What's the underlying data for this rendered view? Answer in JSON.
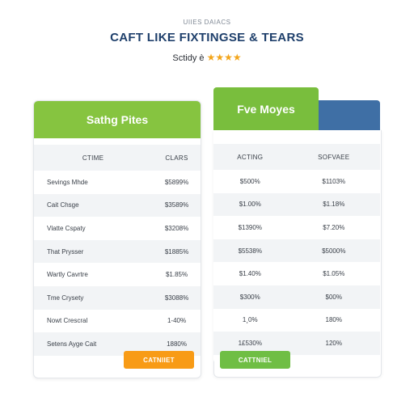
{
  "header": {
    "eyebrow": "UIIES DAIACS",
    "title": "CAFT LIKE FIXTINGSE & TEARS",
    "rating_label": "Sctidy è",
    "stars": "★★★★"
  },
  "left_card": {
    "banner": "Sathg Pites",
    "columns": [
      "CTIME",
      "CLARS"
    ],
    "rows": [
      [
        "Sevings Mhde",
        "$5899%"
      ],
      [
        "Cait Chsge",
        "$3589%"
      ],
      [
        "Vlatte Cspaty",
        "$3208%"
      ],
      [
        "That Prysser",
        "$1885%"
      ],
      [
        "Wartly Cavrtre",
        "$1.85%"
      ],
      [
        "Tme Crysety",
        "$3088%"
      ],
      [
        "Nowt Crescral",
        "1-40%"
      ],
      [
        "Setens Ayge Cait",
        "1880%"
      ]
    ],
    "button": "CATNIIET"
  },
  "right_card": {
    "banner": "Fve Moyes",
    "columns": [
      "ACTING",
      "SOFVAEE"
    ],
    "rows": [
      [
        "$500%",
        "$1103%"
      ],
      [
        "$1.00%",
        "$1.18%"
      ],
      [
        "$1390%",
        "$7.20%"
      ],
      [
        "$5538%",
        "$5000%"
      ],
      [
        "$1.40%",
        "$1.05%"
      ],
      [
        "$300%",
        "$00%"
      ],
      [
        "1¸0%",
        "180%"
      ],
      [
        "1£530%",
        "120%"
      ]
    ],
    "button": "CATTNIEL"
  },
  "colors": {
    "green_banner": "#86c440",
    "green_banner_right": "#79be3d",
    "blue_accent": "#3f6fa5",
    "orange_button": "#f89b16",
    "green_button": "#6fbe44",
    "title_color": "#1e3f6b",
    "star_color": "#f3a51b"
  }
}
